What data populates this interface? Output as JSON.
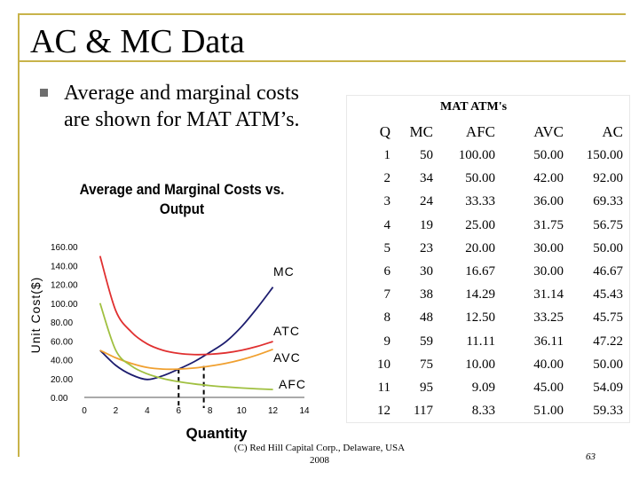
{
  "slide": {
    "title": "AC & MC Data",
    "bullet_text": "Average and marginal costs are shown for MAT ATM’s.",
    "footer_line1": "(C) Red Hill Capital Corp., Delaware, USA",
    "footer_line2": "2008",
    "page_number": "63",
    "accent_color": "#c8b34a"
  },
  "chart_data": {
    "type": "line",
    "title": "Average and Marginal Costs vs. Output",
    "xlabel": "Quantity",
    "ylabel": "Unit Cost($)",
    "xlim": [
      0,
      14
    ],
    "ylim": [
      0,
      160
    ],
    "x_ticks": [
      "0",
      "2",
      "4",
      "6",
      "8",
      "10",
      "12",
      "14"
    ],
    "y_ticks": [
      "0.00",
      "20.00",
      "40.00",
      "60.00",
      "80.00",
      "100.00",
      "120.00",
      "140.00",
      "160.00"
    ],
    "x": [
      1,
      2,
      3,
      4,
      5,
      6,
      7,
      8,
      9,
      10,
      11,
      12
    ],
    "series": [
      {
        "name": "MC",
        "color": "#1c1c6e",
        "values": [
          50,
          34,
          24,
          19,
          23,
          30,
          38,
          48,
          59,
          75,
          95,
          117
        ]
      },
      {
        "name": "ATC",
        "color": "#e03030",
        "values": [
          150,
          92,
          69.33,
          56.75,
          50,
          46.67,
          45.43,
          45.75,
          47.22,
          50,
          54.09,
          59.33
        ]
      },
      {
        "name": "AVC",
        "color": "#f0a030",
        "values": [
          50,
          42,
          36,
          31.75,
          30,
          30,
          31.14,
          33.25,
          36.11,
          40,
          45,
          51
        ]
      },
      {
        "name": "AFC",
        "color": "#a0c040",
        "values": [
          100,
          50,
          33.33,
          25,
          20,
          16.67,
          14.29,
          12.5,
          11.11,
          10,
          9.09,
          8.33
        ]
      }
    ],
    "dashed_markers_x": [
      6,
      7.6
    ]
  },
  "table": {
    "title": "MAT ATM's",
    "columns": [
      "Q",
      "MC",
      "AFC",
      "AVC",
      "AC"
    ],
    "rows": [
      [
        "1",
        "50",
        "100.00",
        "50.00",
        "150.00"
      ],
      [
        "2",
        "34",
        "50.00",
        "42.00",
        "92.00"
      ],
      [
        "3",
        "24",
        "33.33",
        "36.00",
        "69.33"
      ],
      [
        "4",
        "19",
        "25.00",
        "31.75",
        "56.75"
      ],
      [
        "5",
        "23",
        "20.00",
        "30.00",
        "50.00"
      ],
      [
        "6",
        "30",
        "16.67",
        "30.00",
        "46.67"
      ],
      [
        "7",
        "38",
        "14.29",
        "31.14",
        "45.43"
      ],
      [
        "8",
        "48",
        "12.50",
        "33.25",
        "45.75"
      ],
      [
        "9",
        "59",
        "11.11",
        "36.11",
        "47.22"
      ],
      [
        "10",
        "75",
        "10.00",
        "40.00",
        "50.00"
      ],
      [
        "11",
        "95",
        "9.09",
        "45.00",
        "54.09"
      ],
      [
        "12",
        "117",
        "8.33",
        "51.00",
        "59.33"
      ]
    ]
  }
}
